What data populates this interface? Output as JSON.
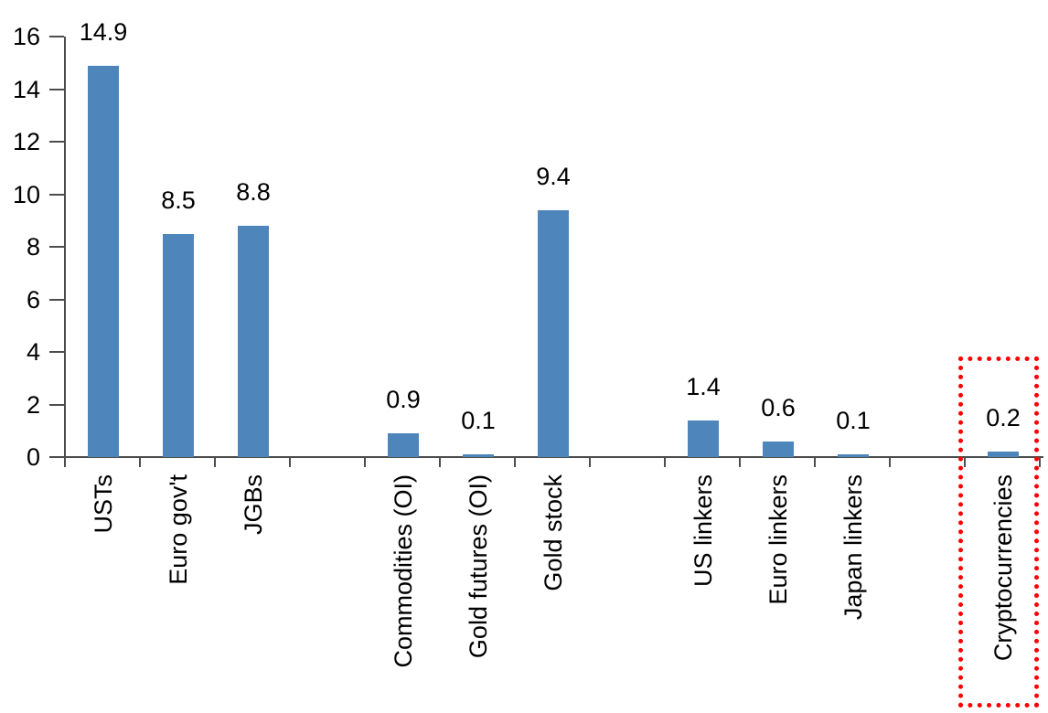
{
  "chart_data": {
    "type": "bar",
    "title": "",
    "xlabel": "",
    "ylabel": "",
    "categories": [
      "USTs",
      "Euro gov't",
      "JGBs",
      "Commodities (OI)",
      "Gold futures (OI)",
      "Gold stock",
      "US linkers",
      "Euro linkers",
      "Japan linkers",
      "Cryptocurrencies"
    ],
    "values": [
      14.9,
      8.5,
      8.8,
      0.9,
      0.1,
      9.4,
      1.4,
      0.6,
      0.1,
      0.2
    ],
    "data_labels": [
      "14.9",
      "8.5",
      "8.8",
      "0.9",
      "0.1",
      "9.4",
      "1.4",
      "0.6",
      "0.1",
      "0.2"
    ],
    "groups": [
      [
        0,
        1,
        2
      ],
      [
        3,
        4,
        5
      ],
      [
        6,
        7,
        8
      ],
      [
        9
      ]
    ],
    "y_ticks": [
      "0",
      "2",
      "4",
      "6",
      "8",
      "10",
      "12",
      "14",
      "16"
    ],
    "ylim": [
      0,
      16
    ],
    "grid": false,
    "legend": false,
    "bar_color": "#4E86BC",
    "axis_color": "#4D4D4D",
    "text_color": "#000000",
    "highlight": {
      "category": "Cryptocurrencies",
      "category_index": 9,
      "style": "red-dotted-box",
      "box_color": "#FF0000"
    }
  }
}
